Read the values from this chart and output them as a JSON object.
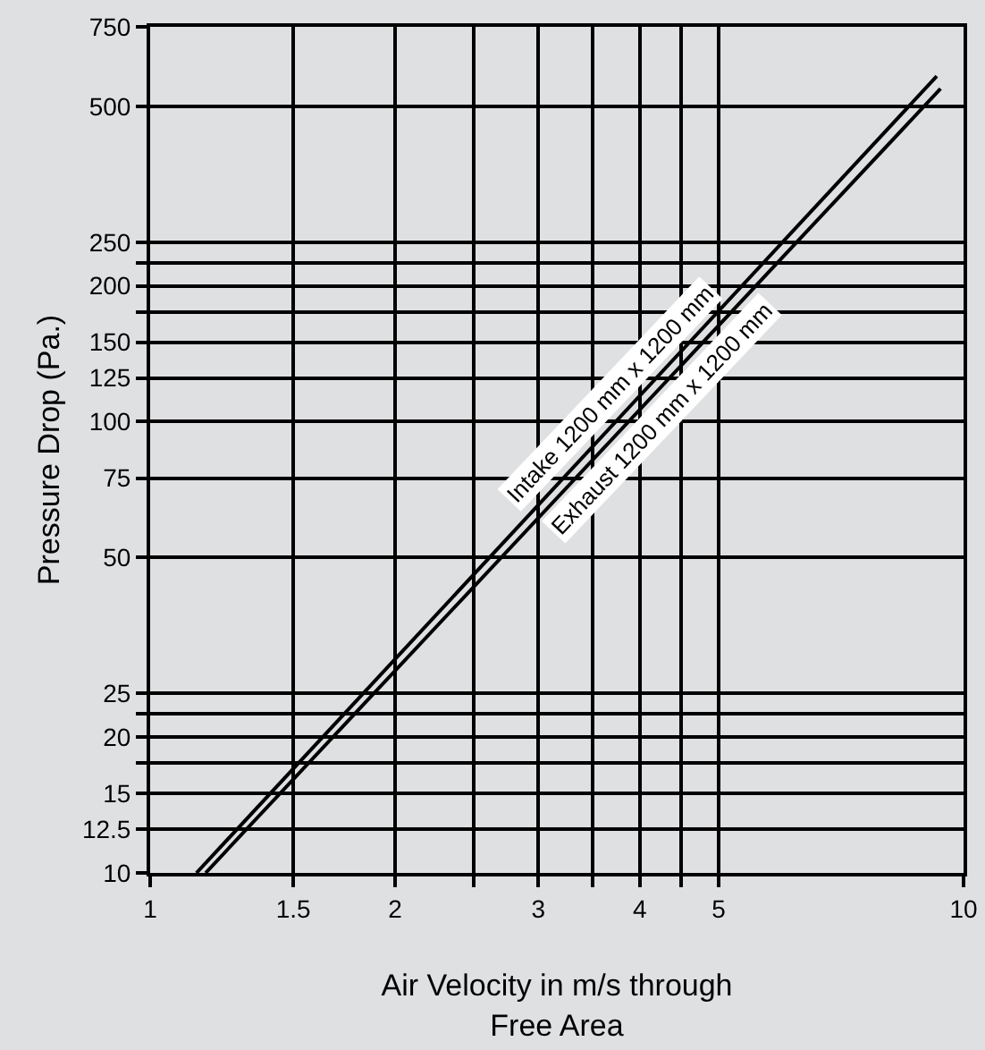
{
  "chart_data": {
    "type": "line",
    "xlabel": "Air Velocity in m/s through\nFree Area",
    "ylabel": "Pressure Drop (Pa.)",
    "log": "xy",
    "series": [
      {
        "name": "Intake 1200 mm x 1200 mm",
        "color": "#000000",
        "x": [
          1.14,
          9.27
        ],
        "values": [
          10,
          583
        ]
      },
      {
        "name": "Exhaust 1200 mm x 1200 mm",
        "color": "#000000",
        "x": [
          1.17,
          9.37
        ],
        "values": [
          10,
          547
        ]
      }
    ],
    "xlim": [
      1,
      10
    ],
    "xticks": [
      1,
      1.5,
      2,
      {
        "value": 2.5,
        "label": null
      },
      3,
      {
        "value": 3.5,
        "label": null
      },
      4,
      {
        "value": 4.5,
        "label": null
      },
      5,
      10
    ],
    "ylim": [
      10,
      750
    ],
    "yticks": [
      10,
      12.5,
      15,
      {
        "value": 17.5,
        "label": null
      },
      20,
      {
        "value": 22.5,
        "label": null
      },
      25,
      50,
      75,
      100,
      125,
      150,
      {
        "value": 175,
        "label": null
      },
      200,
      {
        "value": 225,
        "label": null
      },
      250,
      500,
      750
    ],
    "grid": true,
    "legend": false,
    "marker": "none",
    "line_style": "solid"
  }
}
